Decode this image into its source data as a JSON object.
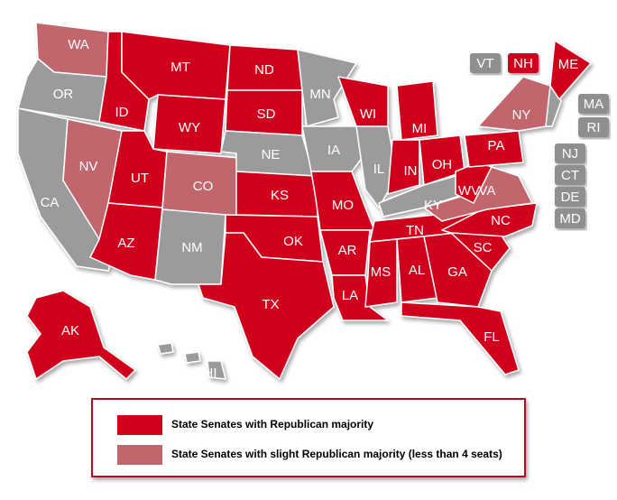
{
  "states": [
    {
      "label": "WA",
      "color": "#c2666d"
    },
    {
      "label": "OR",
      "color": "#9b9b9b"
    },
    {
      "label": "CA",
      "color": "#9b9b9b"
    },
    {
      "label": "NV",
      "color": "#c2666d"
    },
    {
      "label": "ID",
      "color": "#d0021b"
    },
    {
      "label": "MT",
      "color": "#d0021b"
    },
    {
      "label": "WY",
      "color": "#d0021b"
    },
    {
      "label": "UT",
      "color": "#d0021b"
    },
    {
      "label": "AZ",
      "color": "#d0021b"
    },
    {
      "label": "CO",
      "color": "#c2666d"
    },
    {
      "label": "NM",
      "color": "#9b9b9b"
    },
    {
      "label": "ND",
      "color": "#d0021b"
    },
    {
      "label": "SD",
      "color": "#d0021b"
    },
    {
      "label": "NE",
      "color": "#9b9b9b"
    },
    {
      "label": "KS",
      "color": "#d0021b"
    },
    {
      "label": "OK",
      "color": "#d0021b"
    },
    {
      "label": "TX",
      "color": "#d0021b"
    },
    {
      "label": "MN",
      "color": "#9b9b9b"
    },
    {
      "label": "IA",
      "color": "#9b9b9b"
    },
    {
      "label": "MO",
      "color": "#d0021b"
    },
    {
      "label": "AR",
      "color": "#d0021b"
    },
    {
      "label": "LA",
      "color": "#d0021b"
    },
    {
      "label": "WI",
      "color": "#d0021b"
    },
    {
      "label": "IL",
      "color": "#9b9b9b"
    },
    {
      "label": "MI",
      "color": "#d0021b"
    },
    {
      "label": "IN",
      "color": "#d0021b"
    },
    {
      "label": "OH",
      "color": "#d0021b"
    },
    {
      "label": "KY",
      "color": "#9b9b9b"
    },
    {
      "label": "TN",
      "color": "#d0021b"
    },
    {
      "label": "MS",
      "color": "#d0021b"
    },
    {
      "label": "AL",
      "color": "#d0021b"
    },
    {
      "label": "GA",
      "color": "#d0021b"
    },
    {
      "label": "FL",
      "color": "#d0021b"
    },
    {
      "label": "SC",
      "color": "#d0021b"
    },
    {
      "label": "NC",
      "color": "#d0021b"
    },
    {
      "label": "VA",
      "color": "#c2666d"
    },
    {
      "label": "WV",
      "color": "#d0021b"
    },
    {
      "label": "PA",
      "color": "#d0021b"
    },
    {
      "label": "NY",
      "color": "#c2666d"
    },
    {
      "label": "ME",
      "color": "#d0021b"
    },
    {
      "label": "AK",
      "color": "#d0021b"
    },
    {
      "label": "HI",
      "color": "#9b9b9b"
    }
  ],
  "boxed_states": [
    {
      "label": "VT",
      "color": "#8f8f8f"
    },
    {
      "label": "NH",
      "color": "#d0021b"
    },
    {
      "label": "MA",
      "color": "#8f8f8f"
    },
    {
      "label": "RI",
      "color": "#8f8f8f"
    },
    {
      "label": "NJ",
      "color": "#8f8f8f"
    },
    {
      "label": "CT",
      "color": "#8f8f8f"
    },
    {
      "label": "DE",
      "color": "#8f8f8f"
    },
    {
      "label": "MD",
      "color": "#8f8f8f"
    }
  ],
  "legend": [
    {
      "label": "State Senates with Republican majority",
      "color": "#d0021b"
    },
    {
      "label": "State Senates with slight Republican majority (less than 4 seats)",
      "color": "#c2666d"
    }
  ]
}
